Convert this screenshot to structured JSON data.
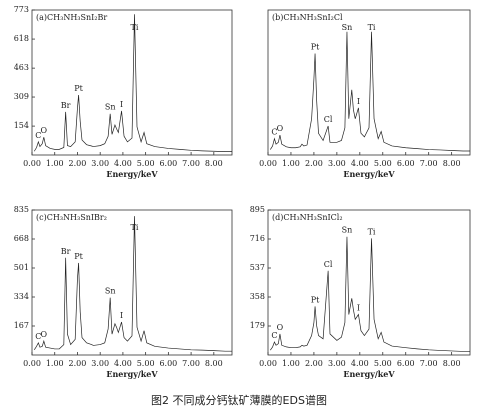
{
  "chart_data": [
    {
      "type": "line",
      "title": "(a)CH₃NH₃SnI₂Br",
      "x_label": "Energy/keV",
      "color": "#222222",
      "x": [
        0.1,
        0.2,
        0.28,
        0.35,
        0.45,
        0.52,
        0.6,
        0.8,
        1.0,
        1.2,
        1.4,
        1.48,
        1.56,
        1.7,
        1.9,
        2.0,
        2.05,
        2.12,
        2.2,
        2.4,
        2.62,
        2.7,
        3.0,
        3.2,
        3.35,
        3.44,
        3.52,
        3.65,
        3.72,
        3.8,
        3.94,
        4.05,
        4.2,
        4.4,
        4.51,
        4.62,
        4.8,
        4.93,
        5.05,
        5.4,
        6.0,
        6.5,
        7.0,
        7.5,
        8.0,
        8.5,
        8.8
      ],
      "values": [
        20,
        40,
        70,
        45,
        60,
        95,
        50,
        35,
        30,
        30,
        40,
        230,
        50,
        45,
        70,
        250,
        320,
        180,
        80,
        55,
        48,
        45,
        50,
        60,
        100,
        220,
        110,
        160,
        140,
        120,
        235,
        100,
        70,
        90,
        750,
        150,
        70,
        120,
        60,
        45,
        35,
        30,
        25,
        22,
        20,
        18,
        18
      ],
      "xlim": [
        0,
        8.8
      ],
      "ylim": [
        0,
        773
      ],
      "xticks": [
        {
          "value": 0,
          "label": "0.00"
        },
        {
          "value": 1,
          "label": "1.00"
        },
        {
          "value": 2,
          "label": "2.00"
        },
        {
          "value": 3,
          "label": "3.00"
        },
        {
          "value": 4,
          "label": "4.00"
        },
        {
          "value": 5,
          "label": "5.00"
        },
        {
          "value": 6,
          "label": "6.00"
        },
        {
          "value": 7,
          "label": "7.00"
        },
        {
          "value": 8,
          "label": "8.00"
        }
      ],
      "yticks": [
        154,
        309,
        463,
        618,
        773
      ],
      "peaks": [
        {
          "label": "C",
          "x": 0.28
        },
        {
          "label": "O",
          "x": 0.52
        },
        {
          "label": "Br",
          "x": 1.48
        },
        {
          "label": "Pt",
          "x": 2.05
        },
        {
          "label": "Sn",
          "x": 3.44
        },
        {
          "label": "I",
          "x": 3.94
        },
        {
          "label": "Ti",
          "x": 4.51
        }
      ]
    },
    {
      "type": "line",
      "title": "(b)CH₃NH₃SnI₂Cl",
      "x_label": "Energy/keV",
      "color": "#222222",
      "x": [
        0.1,
        0.2,
        0.28,
        0.35,
        0.45,
        0.52,
        0.6,
        0.8,
        1.0,
        1.2,
        1.4,
        1.48,
        1.56,
        1.7,
        1.9,
        2.0,
        2.05,
        2.12,
        2.2,
        2.4,
        2.62,
        2.7,
        3.0,
        3.2,
        3.35,
        3.44,
        3.52,
        3.65,
        3.72,
        3.8,
        3.94,
        4.05,
        4.2,
        4.4,
        4.51,
        4.62,
        4.8,
        4.93,
        5.05,
        5.4,
        6.0,
        6.5,
        7.0,
        7.5,
        8.0,
        8.5,
        8.8
      ],
      "values": [
        30,
        50,
        90,
        60,
        70,
        110,
        60,
        45,
        40,
        40,
        45,
        60,
        50,
        55,
        200,
        420,
        560,
        300,
        120,
        80,
        160,
        70,
        70,
        80,
        150,
        680,
        200,
        360,
        250,
        200,
        260,
        120,
        100,
        150,
        680,
        200,
        90,
        130,
        70,
        50,
        40,
        35,
        30,
        28,
        25,
        22,
        22
      ],
      "xlim": [
        0,
        8.8
      ],
      "ylim": [
        0,
        800
      ],
      "xticks": [
        {
          "value": 0,
          "label": "0.00"
        },
        {
          "value": 1,
          "label": "1.00"
        },
        {
          "value": 2,
          "label": "2.00"
        },
        {
          "value": 3,
          "label": "3.00"
        },
        {
          "value": 4,
          "label": "4.00"
        },
        {
          "value": 5,
          "label": "5.00"
        },
        {
          "value": 6,
          "label": "6.00"
        },
        {
          "value": 7,
          "label": "7.00"
        },
        {
          "value": 8,
          "label": "8.00"
        }
      ],
      "peaks": [
        {
          "label": "C",
          "x": 0.28
        },
        {
          "label": "O",
          "x": 0.52
        },
        {
          "label": "Pt",
          "x": 2.05
        },
        {
          "label": "Cl",
          "x": 2.62
        },
        {
          "label": "Sn",
          "x": 3.44
        },
        {
          "label": "I",
          "x": 3.94
        },
        {
          "label": "Ti",
          "x": 4.51
        }
      ]
    },
    {
      "type": "line",
      "title": "(c)CH₃NH₃SnIBr₂",
      "x_label": "Energy/keV",
      "color": "#222222",
      "x": [
        0.1,
        0.2,
        0.28,
        0.35,
        0.45,
        0.52,
        0.6,
        0.8,
        1.0,
        1.2,
        1.4,
        1.48,
        1.56,
        1.7,
        1.9,
        2.0,
        2.05,
        2.12,
        2.2,
        2.4,
        2.62,
        2.7,
        3.0,
        3.2,
        3.35,
        3.44,
        3.52,
        3.65,
        3.72,
        3.8,
        3.94,
        4.05,
        4.2,
        4.4,
        4.51,
        4.62,
        4.8,
        4.93,
        5.05,
        5.4,
        6.0,
        6.5,
        7.0,
        7.5,
        8.0,
        8.5,
        8.8
      ],
      "values": [
        30,
        50,
        70,
        45,
        50,
        80,
        45,
        40,
        35,
        35,
        60,
        560,
        120,
        60,
        90,
        440,
        530,
        250,
        100,
        70,
        60,
        55,
        60,
        70,
        150,
        330,
        120,
        180,
        160,
        130,
        190,
        100,
        80,
        110,
        800,
        160,
        80,
        140,
        70,
        50,
        40,
        35,
        30,
        28,
        25,
        22,
        22
      ],
      "xlim": [
        0,
        8.8
      ],
      "ylim": [
        0,
        835
      ],
      "xticks": [
        {
          "value": 0,
          "label": "0.00"
        },
        {
          "value": 1,
          "label": "1.00"
        },
        {
          "value": 2,
          "label": "2.00"
        },
        {
          "value": 3,
          "label": "3.00"
        },
        {
          "value": 4,
          "label": "4.00"
        },
        {
          "value": 5,
          "label": "5.00"
        },
        {
          "value": 6,
          "label": "6.00"
        },
        {
          "value": 7,
          "label": "7.00"
        },
        {
          "value": 8,
          "label": "8.00"
        }
      ],
      "yticks": [
        167,
        334,
        501,
        668,
        835
      ],
      "peaks": [
        {
          "label": "C",
          "x": 0.28
        },
        {
          "label": "O",
          "x": 0.52
        },
        {
          "label": "Br",
          "x": 1.48
        },
        {
          "label": "Pt",
          "x": 2.05
        },
        {
          "label": "Sn",
          "x": 3.44
        },
        {
          "label": "I",
          "x": 3.94
        },
        {
          "label": "Ti",
          "x": 4.51
        }
      ]
    },
    {
      "type": "line",
      "title": "(d)CH₃NH₃SnICl₂",
      "x_label": "Energy/keV",
      "color": "#222222",
      "x": [
        0.1,
        0.2,
        0.28,
        0.35,
        0.45,
        0.52,
        0.6,
        0.8,
        1.0,
        1.2,
        1.4,
        1.48,
        1.56,
        1.7,
        1.9,
        2.0,
        2.05,
        2.12,
        2.2,
        2.4,
        2.62,
        2.7,
        3.0,
        3.2,
        3.35,
        3.44,
        3.52,
        3.65,
        3.72,
        3.8,
        3.94,
        4.05,
        4.2,
        4.4,
        4.51,
        4.62,
        4.8,
        4.93,
        5.05,
        5.4,
        6.0,
        6.5,
        7.0,
        7.5,
        8.0,
        8.5,
        8.8
      ],
      "values": [
        30,
        50,
        80,
        60,
        70,
        130,
        60,
        50,
        45,
        45,
        50,
        60,
        55,
        60,
        120,
        200,
        300,
        180,
        120,
        100,
        520,
        130,
        90,
        110,
        200,
        730,
        250,
        350,
        280,
        220,
        250,
        150,
        120,
        160,
        720,
        220,
        100,
        140,
        80,
        55,
        45,
        38,
        32,
        28,
        25,
        22,
        22
      ],
      "xlim": [
        0,
        8.8
      ],
      "ylim": [
        0,
        895
      ],
      "xticks": [
        {
          "value": 0,
          "label": "0.00"
        },
        {
          "value": 1,
          "label": "1.00"
        },
        {
          "value": 2,
          "label": "2.00"
        },
        {
          "value": 3,
          "label": "3.00"
        },
        {
          "value": 4,
          "label": "4.00"
        },
        {
          "value": 5,
          "label": "5.00"
        },
        {
          "value": 6,
          "label": "6.00"
        },
        {
          "value": 7,
          "label": "7.00"
        },
        {
          "value": 8,
          "label": "8.00"
        }
      ],
      "yticks": [
        179,
        358,
        537,
        716,
        895
      ],
      "peaks": [
        {
          "label": "C",
          "x": 0.28
        },
        {
          "label": "O",
          "x": 0.52
        },
        {
          "label": "Pt",
          "x": 2.05
        },
        {
          "label": "Cl",
          "x": 2.62
        },
        {
          "label": "Sn",
          "x": 3.44
        },
        {
          "label": "I",
          "x": 3.94
        },
        {
          "label": "Ti",
          "x": 4.51
        }
      ]
    }
  ],
  "caption": "图2 不同成分钙钛矿薄膜的EDS谱图"
}
